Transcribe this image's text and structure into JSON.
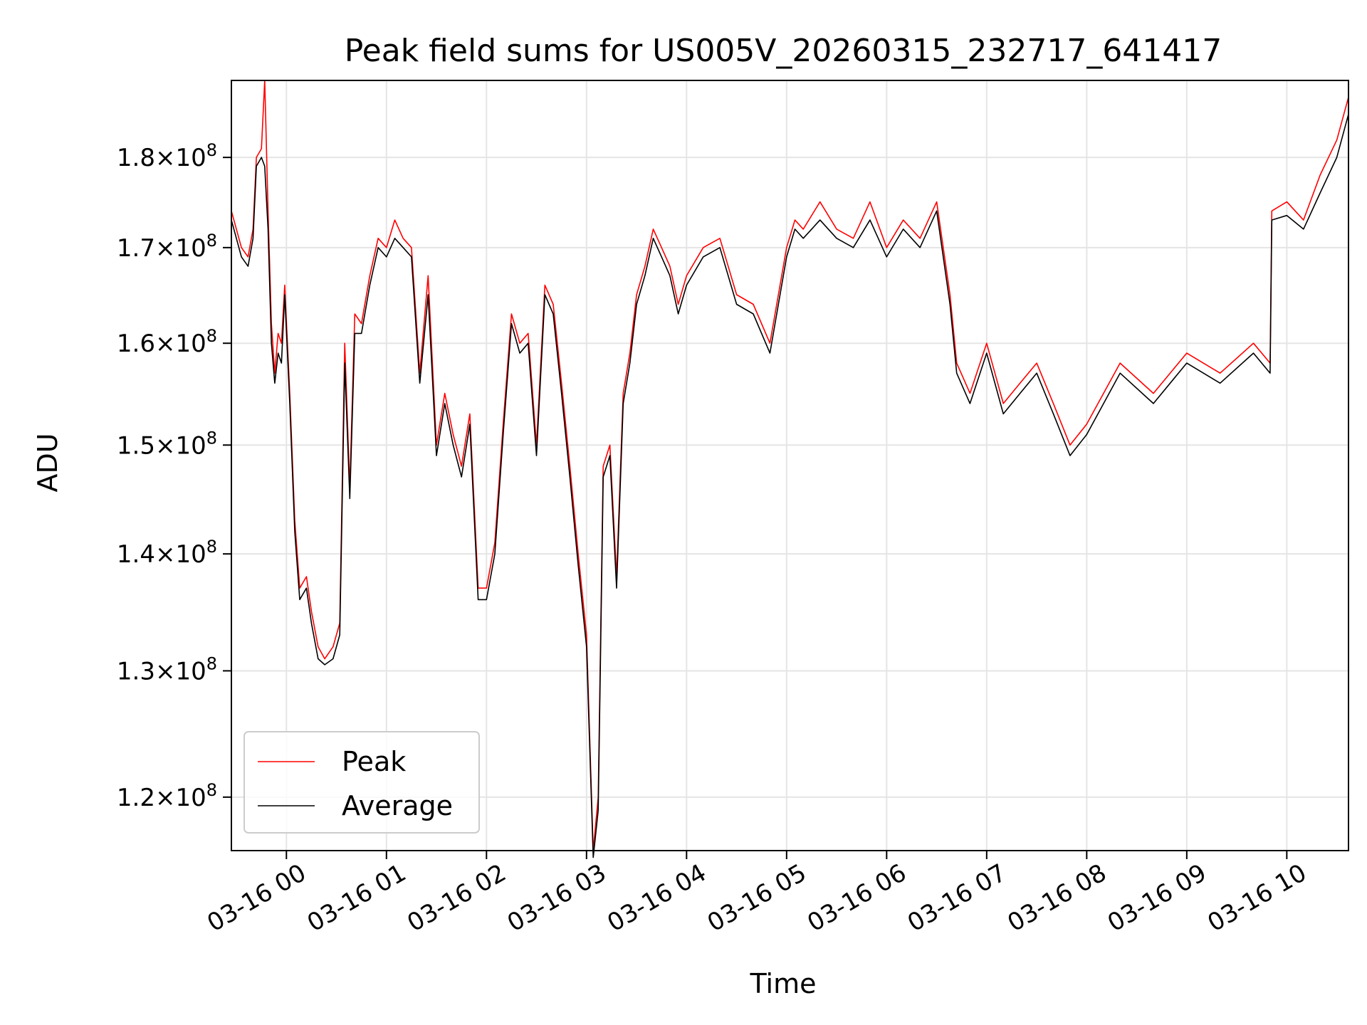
{
  "chart_data": {
    "type": "line",
    "title": "Peak field sums for US005V_20260315_232717_641417",
    "xlabel": "Time",
    "ylabel": "ADU",
    "y_scale": "log",
    "xlim": [
      "2026-03-15 23:27",
      "2026-03-16 10:37"
    ],
    "ylim": [
      116000000,
      189000000
    ],
    "x_ticks": [
      {
        "time": "2026-03-16 00:00",
        "label": "03-16 00"
      },
      {
        "time": "2026-03-16 01:00",
        "label": "03-16 01"
      },
      {
        "time": "2026-03-16 02:00",
        "label": "03-16 02"
      },
      {
        "time": "2026-03-16 03:00",
        "label": "03-16 03"
      },
      {
        "time": "2026-03-16 04:00",
        "label": "03-16 04"
      },
      {
        "time": "2026-03-16 05:00",
        "label": "03-16 05"
      },
      {
        "time": "2026-03-16 06:00",
        "label": "03-16 06"
      },
      {
        "time": "2026-03-16 07:00",
        "label": "03-16 07"
      },
      {
        "time": "2026-03-16 08:00",
        "label": "03-16 08"
      },
      {
        "time": "2026-03-16 09:00",
        "label": "03-16 09"
      },
      {
        "time": "2026-03-16 10:00",
        "label": "03-16 10"
      }
    ],
    "y_ticks": [
      {
        "value": 120000000,
        "mantissa": "1.2",
        "exponent": "8"
      },
      {
        "value": 130000000,
        "mantissa": "1.3",
        "exponent": "8"
      },
      {
        "value": 140000000,
        "mantissa": "1.4",
        "exponent": "8"
      },
      {
        "value": 150000000,
        "mantissa": "1.5",
        "exponent": "8"
      },
      {
        "value": 160000000,
        "mantissa": "1.6",
        "exponent": "8"
      },
      {
        "value": 170000000,
        "mantissa": "1.7",
        "exponent": "8"
      },
      {
        "value": 180000000,
        "mantissa": "1.8",
        "exponent": "8"
      }
    ],
    "grid": true,
    "legend_position": "lower-left",
    "series": [
      {
        "name": "Peak",
        "color": "#ff0000",
        "x": [
          "2026-03-15 23:27",
          "2026-03-15 23:33",
          "2026-03-15 23:37",
          "2026-03-15 23:40",
          "2026-03-15 23:42",
          "2026-03-15 23:45",
          "2026-03-15 23:47",
          "2026-03-15 23:49",
          "2026-03-15 23:51",
          "2026-03-15 23:53",
          "2026-03-15 23:55",
          "2026-03-15 23:57",
          "2026-03-15 23:59",
          "2026-03-16 00:02",
          "2026-03-16 00:05",
          "2026-03-16 00:08",
          "2026-03-16 00:12",
          "2026-03-16 00:15",
          "2026-03-16 00:19",
          "2026-03-16 00:23",
          "2026-03-16 00:28",
          "2026-03-16 00:32",
          "2026-03-16 00:35",
          "2026-03-16 00:38",
          "2026-03-16 00:41",
          "2026-03-16 00:45",
          "2026-03-16 00:50",
          "2026-03-16 00:55",
          "2026-03-16 01:00",
          "2026-03-16 01:05",
          "2026-03-16 01:10",
          "2026-03-16 01:15",
          "2026-03-16 01:20",
          "2026-03-16 01:25",
          "2026-03-16 01:30",
          "2026-03-16 01:35",
          "2026-03-16 01:40",
          "2026-03-16 01:45",
          "2026-03-16 01:50",
          "2026-03-16 01:55",
          "2026-03-16 02:00",
          "2026-03-16 02:05",
          "2026-03-16 02:10",
          "2026-03-16 02:15",
          "2026-03-16 02:20",
          "2026-03-16 02:25",
          "2026-03-16 02:30",
          "2026-03-16 02:35",
          "2026-03-16 02:40",
          "2026-03-16 02:45",
          "2026-03-16 02:50",
          "2026-03-16 02:55",
          "2026-03-16 03:00",
          "2026-03-16 03:04",
          "2026-03-16 03:07",
          "2026-03-16 03:10",
          "2026-03-16 03:14",
          "2026-03-16 03:18",
          "2026-03-16 03:22",
          "2026-03-16 03:26",
          "2026-03-16 03:30",
          "2026-03-16 03:35",
          "2026-03-16 03:40",
          "2026-03-16 03:45",
          "2026-03-16 03:50",
          "2026-03-16 03:55",
          "2026-03-16 04:00",
          "2026-03-16 04:10",
          "2026-03-16 04:20",
          "2026-03-16 04:30",
          "2026-03-16 04:40",
          "2026-03-16 04:50",
          "2026-03-16 05:00",
          "2026-03-16 05:05",
          "2026-03-16 05:10",
          "2026-03-16 05:20",
          "2026-03-16 05:30",
          "2026-03-16 05:40",
          "2026-03-16 05:50",
          "2026-03-16 06:00",
          "2026-03-16 06:10",
          "2026-03-16 06:20",
          "2026-03-16 06:30",
          "2026-03-16 06:38",
          "2026-03-16 06:42",
          "2026-03-16 06:50",
          "2026-03-16 07:00",
          "2026-03-16 07:10",
          "2026-03-16 07:20",
          "2026-03-16 07:30",
          "2026-03-16 07:40",
          "2026-03-16 07:50",
          "2026-03-16 08:00",
          "2026-03-16 08:20",
          "2026-03-16 08:40",
          "2026-03-16 09:00",
          "2026-03-16 09:20",
          "2026-03-16 09:40",
          "2026-03-16 09:50",
          "2026-03-16 09:51",
          "2026-03-16 10:00",
          "2026-03-16 10:10",
          "2026-03-16 10:20",
          "2026-03-16 10:30",
          "2026-03-16 10:37"
        ],
        "y": [
          174000000,
          170000000,
          169000000,
          172000000,
          180000000,
          181000000,
          189000000,
          174000000,
          162000000,
          157000000,
          161000000,
          160000000,
          166000000,
          155000000,
          143000000,
          137000000,
          138000000,
          135000000,
          132000000,
          131000000,
          132000000,
          134000000,
          160000000,
          146000000,
          163000000,
          162000000,
          167000000,
          171000000,
          170000000,
          173000000,
          171000000,
          170000000,
          157000000,
          167000000,
          150000000,
          155000000,
          151000000,
          148000000,
          153000000,
          137000000,
          137000000,
          141000000,
          152000000,
          163000000,
          160000000,
          161000000,
          150000000,
          166000000,
          164000000,
          156000000,
          148000000,
          140000000,
          133000000,
          116000000,
          120000000,
          148000000,
          150000000,
          138000000,
          155000000,
          159000000,
          165000000,
          168000000,
          172000000,
          170000000,
          168000000,
          164000000,
          167000000,
          170000000,
          171000000,
          165000000,
          164000000,
          160000000,
          170000000,
          173000000,
          172000000,
          175000000,
          172000000,
          171000000,
          175000000,
          170000000,
          173000000,
          171000000,
          175000000,
          165000000,
          158000000,
          155000000,
          160000000,
          154000000,
          156000000,
          158000000,
          154000000,
          150000000,
          152000000,
          158000000,
          155000000,
          159000000,
          157000000,
          160000000,
          158000000,
          174000000,
          175000000,
          173000000,
          178000000,
          182000000,
          187000000
        ]
      },
      {
        "name": "Average",
        "color": "#000000",
        "x": [
          "2026-03-15 23:27",
          "2026-03-15 23:33",
          "2026-03-15 23:37",
          "2026-03-15 23:40",
          "2026-03-15 23:42",
          "2026-03-15 23:45",
          "2026-03-15 23:47",
          "2026-03-15 23:49",
          "2026-03-15 23:51",
          "2026-03-15 23:53",
          "2026-03-15 23:55",
          "2026-03-15 23:57",
          "2026-03-15 23:59",
          "2026-03-16 00:02",
          "2026-03-16 00:05",
          "2026-03-16 00:08",
          "2026-03-16 00:12",
          "2026-03-16 00:15",
          "2026-03-16 00:19",
          "2026-03-16 00:23",
          "2026-03-16 00:28",
          "2026-03-16 00:32",
          "2026-03-16 00:35",
          "2026-03-16 00:38",
          "2026-03-16 00:41",
          "2026-03-16 00:45",
          "2026-03-16 00:50",
          "2026-03-16 00:55",
          "2026-03-16 01:00",
          "2026-03-16 01:05",
          "2026-03-16 01:10",
          "2026-03-16 01:15",
          "2026-03-16 01:20",
          "2026-03-16 01:25",
          "2026-03-16 01:30",
          "2026-03-16 01:35",
          "2026-03-16 01:40",
          "2026-03-16 01:45",
          "2026-03-16 01:50",
          "2026-03-16 01:55",
          "2026-03-16 02:00",
          "2026-03-16 02:05",
          "2026-03-16 02:10",
          "2026-03-16 02:15",
          "2026-03-16 02:20",
          "2026-03-16 02:25",
          "2026-03-16 02:30",
          "2026-03-16 02:35",
          "2026-03-16 02:40",
          "2026-03-16 02:45",
          "2026-03-16 02:50",
          "2026-03-16 02:55",
          "2026-03-16 03:00",
          "2026-03-16 03:04",
          "2026-03-16 03:07",
          "2026-03-16 03:10",
          "2026-03-16 03:14",
          "2026-03-16 03:18",
          "2026-03-16 03:22",
          "2026-03-16 03:26",
          "2026-03-16 03:30",
          "2026-03-16 03:35",
          "2026-03-16 03:40",
          "2026-03-16 03:45",
          "2026-03-16 03:50",
          "2026-03-16 03:55",
          "2026-03-16 04:00",
          "2026-03-16 04:10",
          "2026-03-16 04:20",
          "2026-03-16 04:30",
          "2026-03-16 04:40",
          "2026-03-16 04:50",
          "2026-03-16 05:00",
          "2026-03-16 05:05",
          "2026-03-16 05:10",
          "2026-03-16 05:20",
          "2026-03-16 05:30",
          "2026-03-16 05:40",
          "2026-03-16 05:50",
          "2026-03-16 06:00",
          "2026-03-16 06:10",
          "2026-03-16 06:20",
          "2026-03-16 06:30",
          "2026-03-16 06:38",
          "2026-03-16 06:42",
          "2026-03-16 06:50",
          "2026-03-16 07:00",
          "2026-03-16 07:10",
          "2026-03-16 07:20",
          "2026-03-16 07:30",
          "2026-03-16 07:40",
          "2026-03-16 07:50",
          "2026-03-16 08:00",
          "2026-03-16 08:20",
          "2026-03-16 08:40",
          "2026-03-16 09:00",
          "2026-03-16 09:20",
          "2026-03-16 09:40",
          "2026-03-16 09:50",
          "2026-03-16 09:51",
          "2026-03-16 10:00",
          "2026-03-16 10:10",
          "2026-03-16 10:20",
          "2026-03-16 10:30",
          "2026-03-16 10:37"
        ],
        "y": [
          173000000,
          169000000,
          168000000,
          171000000,
          179000000,
          180000000,
          179000000,
          172000000,
          160000000,
          156000000,
          159000000,
          158000000,
          165000000,
          154000000,
          142000000,
          136000000,
          137000000,
          134000000,
          131000000,
          130500000,
          131000000,
          133000000,
          158000000,
          145000000,
          161000000,
          161000000,
          166000000,
          170000000,
          169000000,
          171000000,
          170000000,
          169000000,
          156000000,
          165000000,
          149000000,
          154000000,
          150000000,
          147000000,
          152000000,
          136000000,
          136000000,
          140000000,
          151000000,
          162000000,
          159000000,
          160000000,
          149000000,
          165000000,
          163000000,
          155000000,
          147000000,
          139000000,
          132000000,
          115500000,
          119000000,
          147000000,
          149000000,
          137000000,
          154000000,
          158000000,
          164000000,
          167000000,
          171000000,
          169000000,
          167000000,
          163000000,
          166000000,
          169000000,
          170000000,
          164000000,
          163000000,
          159000000,
          169000000,
          172000000,
          171000000,
          173000000,
          171000000,
          170000000,
          173000000,
          169000000,
          172000000,
          170000000,
          174000000,
          164000000,
          157000000,
          154000000,
          159000000,
          153000000,
          155000000,
          157000000,
          153000000,
          149000000,
          151000000,
          157000000,
          154000000,
          158000000,
          156000000,
          159000000,
          157000000,
          173000000,
          173500000,
          172000000,
          176000000,
          180000000,
          185000000
        ]
      }
    ]
  }
}
